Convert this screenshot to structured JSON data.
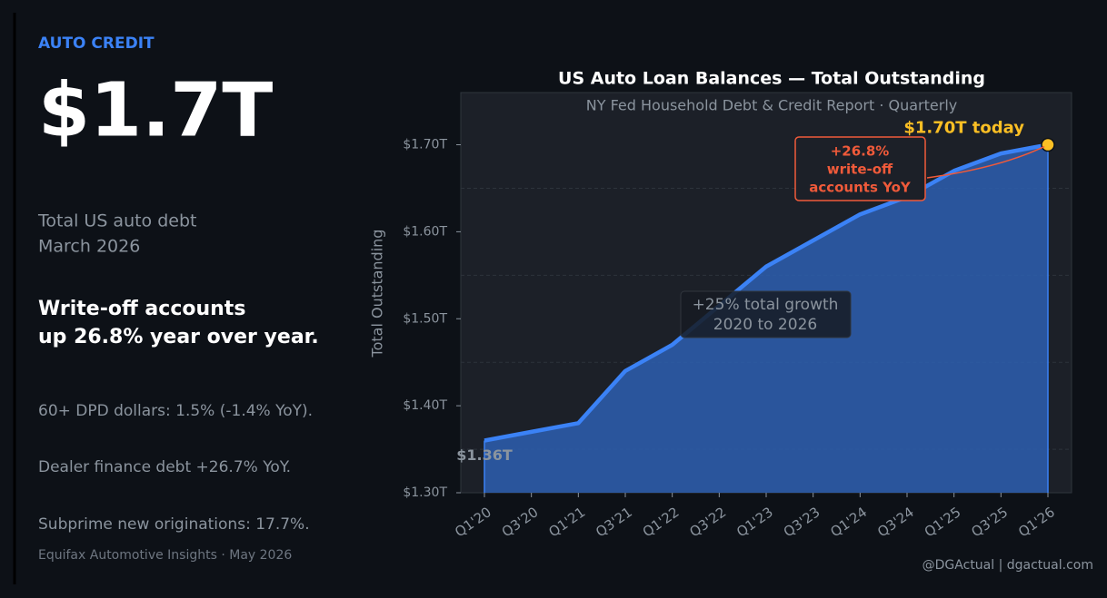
{
  "left_panel": {
    "kicker": "AUTO CREDIT",
    "headline": "$1.7T",
    "description": [
      "Total US auto debt",
      "March 2026"
    ],
    "highlight": [
      "Write-off accounts",
      "up 26.8% year over year."
    ],
    "stats": [
      "60+ DPD dollars: 1.5% (-1.4% YoY).",
      "Dealer finance debt +26.7% YoY.",
      "Subprime new originations: 17.7%."
    ],
    "source": "Equifax Automotive Insights · May 2026"
  },
  "chart_data": {
    "type": "line",
    "title": "US Auto Loan Balances — Total Outstanding",
    "subtitle": "NY Fed Household Debt & Credit Report  ·  Quarterly",
    "y_label": "Total Outstanding",
    "categories": [
      "Q1'20",
      "Q3'20",
      "Q1'21",
      "Q3'21",
      "Q1'22",
      "Q3'22",
      "Q1'23",
      "Q3'23",
      "Q1'24",
      "Q3'24",
      "Q1'25",
      "Q3'25",
      "Q1'26"
    ],
    "values": [
      1.36,
      1.37,
      1.38,
      1.44,
      1.47,
      1.515,
      1.56,
      1.59,
      1.62,
      1.64,
      1.67,
      1.69,
      1.7
    ],
    "color": "#3b82f6",
    "fill_color": "#2d5fb0",
    "end_color": "#fbbf24",
    "ylim": [
      1.3,
      1.76
    ],
    "yticks": [
      {
        "value": 1.3,
        "label": "$1.30T"
      },
      {
        "value": 1.4,
        "label": "$1.40T"
      },
      {
        "value": 1.5,
        "label": "$1.50T"
      },
      {
        "value": 1.6,
        "label": "$1.60T"
      },
      {
        "value": 1.7,
        "label": "$1.70T"
      }
    ],
    "minor_yticks": [
      1.35,
      1.45,
      1.55,
      1.65
    ],
    "grid": true,
    "start_label": "$1.36T",
    "end_label": "$1.70T  today",
    "callout": [
      "+26.8%",
      "write-off",
      "accounts YoY"
    ],
    "growth_note": [
      "+25% total growth",
      "2020 to 2026"
    ]
  },
  "footer": "@DGActual  |  dgactual.com"
}
